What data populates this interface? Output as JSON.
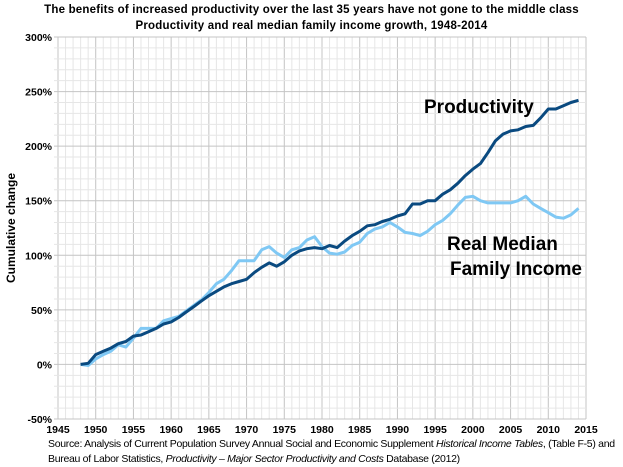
{
  "chart_data": {
    "type": "line",
    "title": "The benefits of increased productivity over the last 35 years have not gone to the middle class",
    "subtitle": "Productivity and real median family income growth, 1948-2014",
    "xlabel": "",
    "ylabel": "Cumulative change",
    "xlim": [
      1945,
      2015
    ],
    "ylim": [
      -50,
      300
    ],
    "x_ticks": [
      "1945",
      "1950",
      "1955",
      "1960",
      "1965",
      "1970",
      "1975",
      "1980",
      "1985",
      "1990",
      "1995",
      "2000",
      "2005",
      "2010",
      "2015"
    ],
    "y_ticks": [
      "300%",
      "250%",
      "200%",
      "150%",
      "100%",
      "50%",
      "0%",
      "-50%"
    ],
    "grid": true,
    "x": [
      1948,
      1949,
      1950,
      1951,
      1952,
      1953,
      1954,
      1955,
      1956,
      1957,
      1958,
      1959,
      1960,
      1961,
      1962,
      1963,
      1964,
      1965,
      1966,
      1967,
      1968,
      1969,
      1970,
      1971,
      1972,
      1973,
      1974,
      1975,
      1976,
      1977,
      1978,
      1979,
      1980,
      1981,
      1982,
      1983,
      1984,
      1985,
      1986,
      1987,
      1988,
      1989,
      1990,
      1991,
      1992,
      1993,
      1994,
      1995,
      1996,
      1997,
      1998,
      1999,
      2000,
      2001,
      2002,
      2003,
      2004,
      2005,
      2006,
      2007,
      2008,
      2009,
      2010,
      2011,
      2012,
      2013,
      2014
    ],
    "series": [
      {
        "name": "Productivity",
        "color": "#0a4a80",
        "values": [
          0,
          1,
          9,
          12,
          15,
          19,
          21,
          26,
          27,
          30,
          33,
          37,
          39,
          43,
          48,
          53,
          58,
          63,
          67,
          71,
          74,
          76,
          78,
          84,
          89,
          93,
          90,
          94,
          100,
          104,
          106,
          107,
          106,
          109,
          107,
          113,
          118,
          122,
          127,
          128,
          131,
          133,
          136,
          138,
          147,
          147,
          150,
          150,
          156,
          160,
          166,
          173,
          179,
          184,
          194,
          205,
          211,
          214,
          215,
          218,
          219,
          226,
          234,
          234,
          237,
          240,
          242
        ]
      },
      {
        "name": "Real Median Family Income",
        "name_lines": [
          "Real Median",
          "Family Income"
        ],
        "color": "#7fc8f4",
        "values": [
          0,
          -1,
          5,
          9,
          12,
          18,
          16,
          24,
          33,
          33,
          33,
          40,
          42,
          44,
          49,
          54,
          59,
          66,
          74,
          78,
          86,
          95,
          95,
          95,
          105,
          108,
          102,
          98,
          105,
          107,
          114,
          117,
          108,
          102,
          101,
          103,
          109,
          112,
          120,
          124,
          126,
          130,
          126,
          121,
          120,
          118,
          122,
          128,
          132,
          138,
          146,
          153,
          154,
          150,
          148,
          148,
          148,
          148,
          150,
          154,
          147,
          143,
          139,
          135,
          134,
          137,
          143
        ]
      }
    ]
  },
  "source": {
    "line1_a": "Source:  Analysis of Current Population Survey Annual Social and Economic Supplement ",
    "line1_italic": "Historical Income Tables",
    "line1_b": ", (Table F-5) and",
    "line2_a": "Bureau of Labor Statistics, ",
    "line2_italic": "Productivity – Major Sector Productivity and Costs",
    "line2_b": " Database (2012)"
  }
}
